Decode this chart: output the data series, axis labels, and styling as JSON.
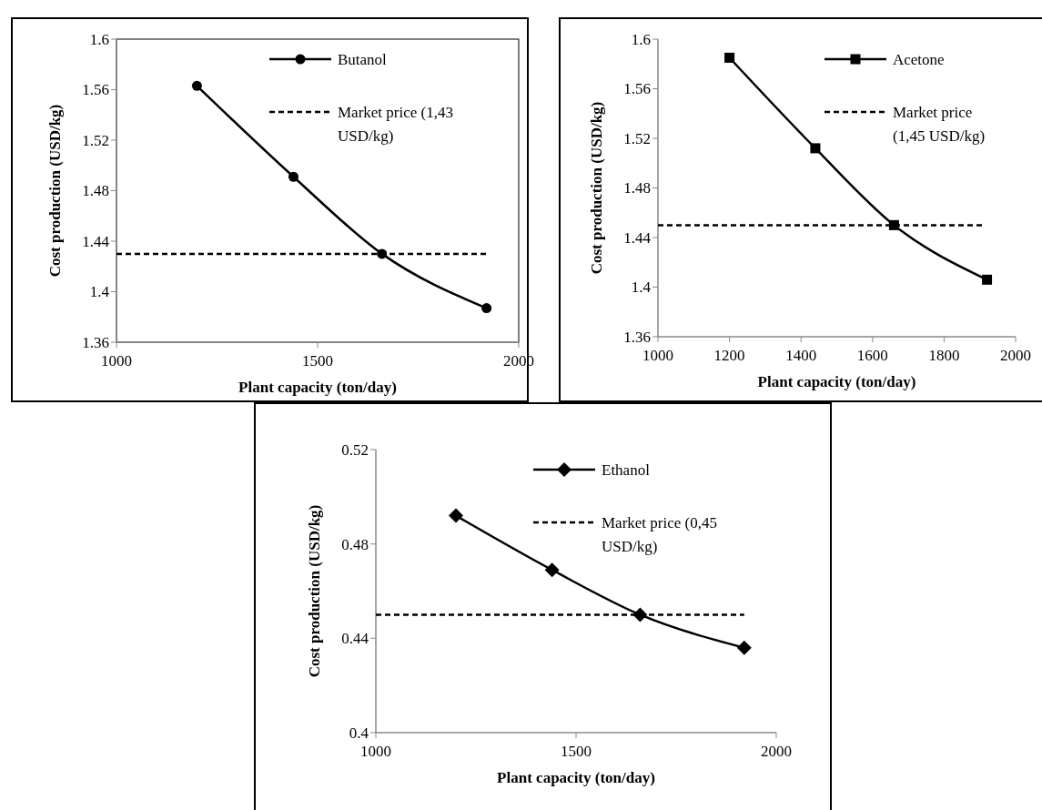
{
  "chart_data": [
    {
      "type": "line",
      "xlabel": "Plant capacity (ton/day)",
      "ylabel": "Cost production (USD/kg)",
      "xlim": [
        1000,
        2000
      ],
      "xticks": [
        1000,
        1500,
        2000
      ],
      "ylim": [
        1.36,
        1.6
      ],
      "yticks": [
        1.36,
        1.4,
        1.44,
        1.48,
        1.52,
        1.56,
        1.6
      ],
      "legend": "top right",
      "grid": false,
      "series": [
        {
          "name": "Butanol",
          "color": "#000000",
          "marker": "circle",
          "line_style": "solid",
          "x": [
            1200,
            1440,
            1660,
            1920
          ],
          "values": [
            1.563,
            1.491,
            1.43,
            1.387
          ]
        },
        {
          "name": "Market price (1,43 USD/kg)",
          "color": "#000000",
          "marker": "none",
          "line_style": "dashed",
          "x": [
            1000,
            1920
          ],
          "values": [
            1.43,
            1.43
          ]
        }
      ]
    },
    {
      "type": "line",
      "xlabel": "Plant capacity (ton/day)",
      "ylabel": "Cost production (USD/kg)",
      "xlim": [
        1000,
        2000
      ],
      "xticks": [
        1000,
        1200,
        1400,
        1600,
        1800,
        2000
      ],
      "ylim": [
        1.36,
        1.6
      ],
      "yticks": [
        1.36,
        1.4,
        1.44,
        1.48,
        1.52,
        1.56,
        1.6
      ],
      "legend": "top right",
      "grid": false,
      "series": [
        {
          "name": "Acetone",
          "color": "#000000",
          "marker": "square",
          "line_style": "solid",
          "x": [
            1200,
            1440,
            1660,
            1920
          ],
          "values": [
            1.585,
            1.512,
            1.45,
            1.406
          ]
        },
        {
          "name": "Market price (1,45 USD/kg)",
          "color": "#000000",
          "marker": "none",
          "line_style": "dashed",
          "x": [
            1000,
            1910
          ],
          "values": [
            1.45,
            1.45
          ]
        }
      ]
    },
    {
      "type": "line",
      "xlabel": "Plant capacity (ton/day)",
      "ylabel": "Cost production (USD/kg)",
      "xlim": [
        1000,
        2000
      ],
      "xticks": [
        1000,
        1500,
        2000
      ],
      "ylim": [
        0.4,
        0.52
      ],
      "yticks": [
        0.4,
        0.44,
        0.48,
        0.52
      ],
      "legend": "top right",
      "grid": false,
      "series": [
        {
          "name": "Ethanol",
          "color": "#000000",
          "marker": "diamond",
          "line_style": "solid",
          "x": [
            1200,
            1440,
            1660,
            1920
          ],
          "values": [
            0.492,
            0.469,
            0.45,
            0.436
          ]
        },
        {
          "name": "Market price (0,45 USD/kg)",
          "color": "#000000",
          "marker": "none",
          "line_style": "dashed",
          "x": [
            1000,
            1920
          ],
          "values": [
            0.45,
            0.45
          ]
        }
      ]
    }
  ]
}
